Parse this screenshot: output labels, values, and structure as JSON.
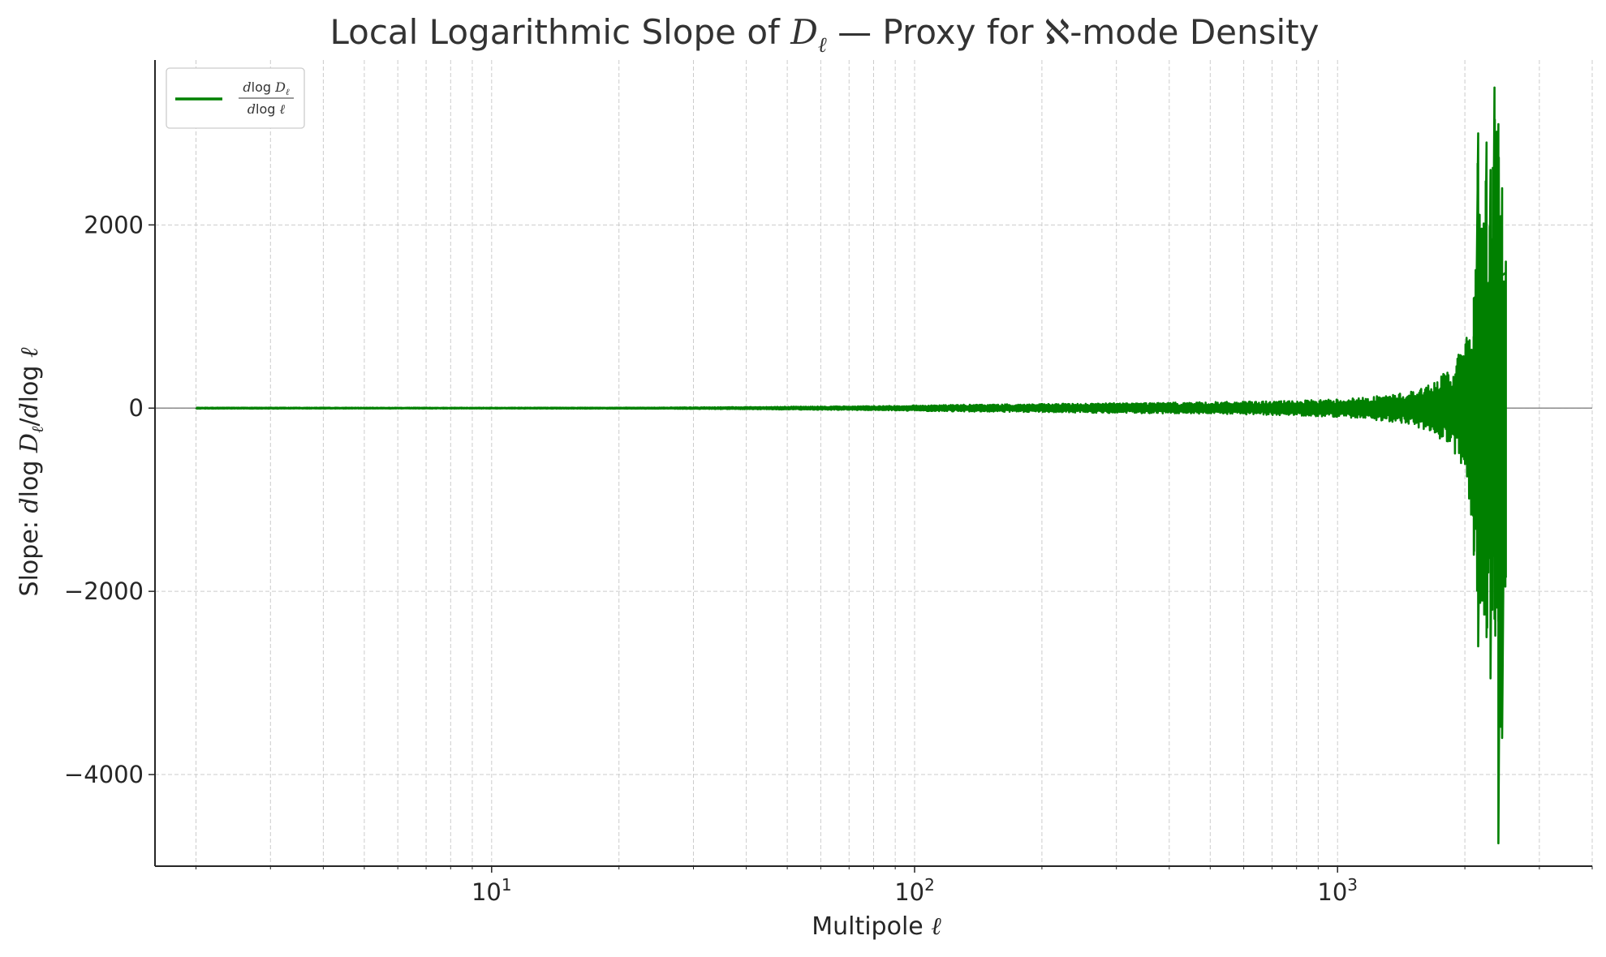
{
  "chart_data": {
    "type": "line",
    "title": {
      "prefix": "Local Logarithmic Slope of ",
      "symbol": "D",
      "subscript": "ℓ",
      "suffix": " — Proxy for ℵ-mode Density"
    },
    "xlabel": {
      "text": "Multipole ",
      "symbol": "ℓ"
    },
    "ylabel": {
      "prefix": "Slope: ",
      "num_d": "d",
      "num_log": "log",
      "num_sym": "D",
      "num_sub": "ℓ",
      "slash": "/",
      "den_d": "d",
      "den_log": "log",
      "den_sym": "ℓ"
    },
    "x_scale": "log",
    "xlim": [
      1.6,
      4000
    ],
    "ylim": [
      -5000,
      3800
    ],
    "x_ticks": [
      {
        "value": 10,
        "base": "10",
        "exp": "1"
      },
      {
        "value": 100,
        "base": "10",
        "exp": "2"
      },
      {
        "value": 1000,
        "base": "10",
        "exp": "3"
      }
    ],
    "y_ticks": [
      {
        "value": 2000,
        "label": "2000"
      },
      {
        "value": 0,
        "label": "0"
      },
      {
        "value": -2000,
        "label": "−2000"
      },
      {
        "value": -4000,
        "label": "−4000"
      }
    ],
    "grid": true,
    "zero_line": true,
    "legend": {
      "position": "top-left",
      "num_d": "d",
      "num_log": "log",
      "num_sym": "D",
      "num_sub": "ℓ",
      "den_d": "d",
      "den_log": "log",
      "den_sym": "ℓ"
    },
    "colors": {
      "series": "#008000",
      "grid": "#cccccc",
      "axis": "#262626",
      "zero_line": "#808080"
    },
    "series": [
      {
        "x_range": [
          2,
          2500
        ],
        "x": [
          2,
          3,
          5,
          8,
          10,
          15,
          20,
          25,
          30,
          35,
          40,
          50,
          60,
          70,
          80,
          90,
          100,
          120,
          150,
          200,
          250,
          300,
          400,
          500,
          600,
          700,
          800,
          900,
          1000,
          1100,
          1200,
          1300,
          1400,
          1500,
          1600,
          1700,
          1800,
          1900,
          1950,
          2000,
          2050,
          2100,
          2150,
          2200,
          2250,
          2300,
          2350,
          2400,
          2450,
          2500
        ],
        "envelope_upper": [
          5,
          5,
          4,
          4,
          4,
          5,
          5,
          6,
          8,
          10,
          12,
          15,
          18,
          20,
          22,
          25,
          30,
          35,
          40,
          45,
          50,
          55,
          60,
          65,
          70,
          75,
          80,
          90,
          100,
          110,
          125,
          140,
          160,
          190,
          230,
          300,
          400,
          520,
          620,
          720,
          950,
          1200,
          3000,
          1900,
          2900,
          2600,
          3500,
          3100,
          2400,
          1600
        ],
        "envelope_lower": [
          -5,
          -5,
          -4,
          -4,
          -4,
          -5,
          -5,
          -6,
          -8,
          -10,
          -12,
          -15,
          -18,
          -20,
          -22,
          -25,
          -30,
          -35,
          -40,
          -45,
          -50,
          -55,
          -60,
          -65,
          -70,
          -75,
          -80,
          -90,
          -100,
          -110,
          -125,
          -140,
          -160,
          -190,
          -230,
          -300,
          -400,
          -520,
          -620,
          -700,
          -1100,
          -1600,
          -2600,
          -2100,
          -2500,
          -2950,
          -2300,
          -4750,
          -3600,
          -1850
        ]
      }
    ]
  }
}
